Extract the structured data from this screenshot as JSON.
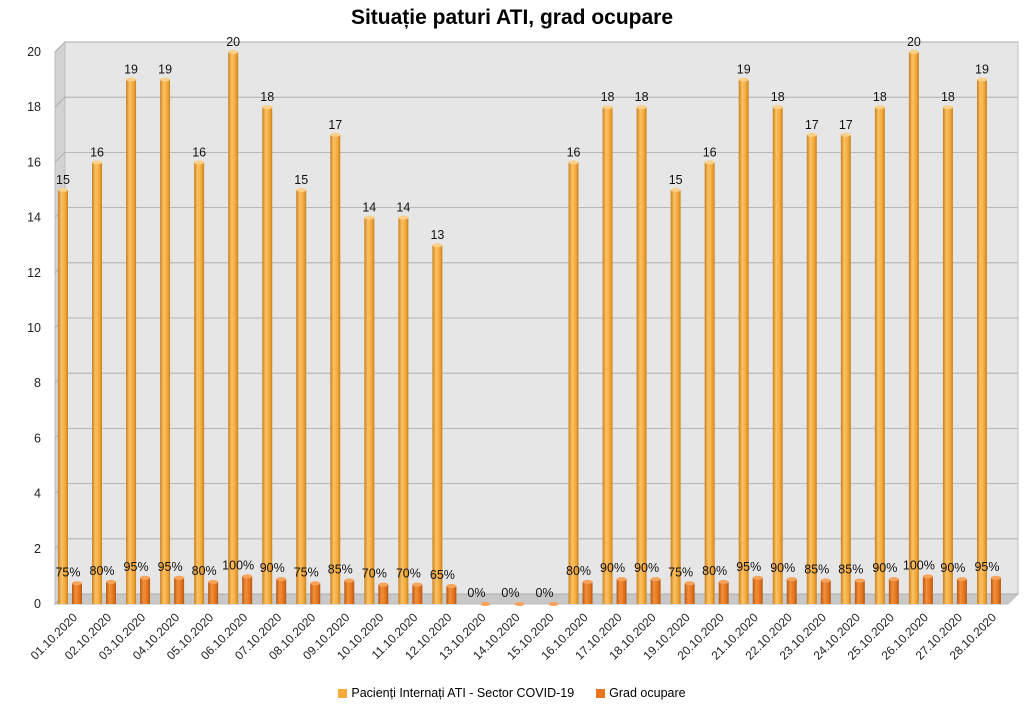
{
  "chart_data": {
    "type": "bar",
    "title": "Situație paturi ATI, grad ocupare",
    "categories": [
      "01.10.2020",
      "02.10.2020",
      "03.10.2020",
      "04.10.2020",
      "05.10.2020",
      "06.10.2020",
      "07.10.2020",
      "08.10.2020",
      "09.10.2020",
      "10.10.2020",
      "11.10.2020",
      "12.10.2020",
      "13.10.2020",
      "14.10.2020",
      "15.10.2020",
      "16.10.2020",
      "17.10.2020",
      "18.10.2020",
      "19.10.2020",
      "20.10.2020",
      "21.10.2020",
      "22.10.2020",
      "23.10.2020",
      "24.10.2020",
      "25.10.2020",
      "26.10.2020",
      "27.10.2020",
      "28.10.2020"
    ],
    "series": [
      {
        "name": "Pacienți Internați ATI - Sector COVID-19",
        "color": "#F5AA3C",
        "values": [
          15,
          16,
          19,
          19,
          16,
          20,
          18,
          15,
          17,
          14,
          14,
          13,
          null,
          null,
          null,
          16,
          18,
          18,
          15,
          16,
          19,
          18,
          17,
          17,
          18,
          20,
          18,
          19
        ],
        "labels": [
          "15",
          "16",
          "19",
          "19",
          "16",
          "20",
          "18",
          "15",
          "17",
          "14",
          "14",
          "13",
          "",
          "",
          "",
          "16",
          "18",
          "18",
          "15",
          "16",
          "19",
          "18",
          "17",
          "17",
          "18",
          "20",
          "18",
          "19"
        ]
      },
      {
        "name": "Grad ocupare",
        "color": "#E8761E",
        "values": [
          0.75,
          0.8,
          0.95,
          0.95,
          0.8,
          1.0,
          0.9,
          0.75,
          0.85,
          0.7,
          0.7,
          0.65,
          0,
          0,
          0,
          0.8,
          0.9,
          0.9,
          0.75,
          0.8,
          0.95,
          0.9,
          0.85,
          0.85,
          0.9,
          1.0,
          0.9,
          0.95
        ],
        "labels": [
          "75%",
          "80%",
          "95%",
          "95%",
          "80%",
          "100%",
          "90%",
          "75%",
          "85%",
          "70%",
          "70%",
          "65%",
          "0%",
          "0%",
          "0%",
          "80%",
          "90%",
          "90%",
          "75%",
          "80%",
          "95%",
          "90%",
          "85%",
          "85%",
          "90%",
          "100%",
          "90%",
          "95%"
        ]
      }
    ],
    "yticks": [
      "0",
      "2",
      "4",
      "6",
      "8",
      "10",
      "12",
      "14",
      "16",
      "18",
      "20"
    ],
    "ylim": [
      0,
      20
    ],
    "grid": true,
    "legend_position": "bottom"
  }
}
